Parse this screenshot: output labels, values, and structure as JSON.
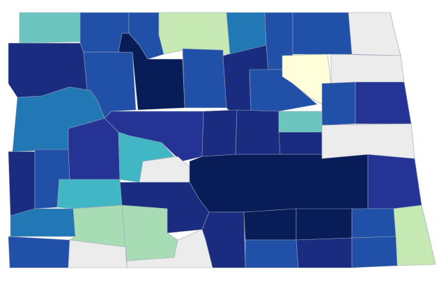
{
  "map": {
    "fills": [
      "#6cc5be",
      "#2150a8",
      "#c6e9b4",
      "#2178b5",
      "#ececec",
      "#1a2c80",
      "#081d58",
      "#ffffd9",
      "#253494",
      "#41b6c4",
      "#a8dcb4"
    ]
  }
}
